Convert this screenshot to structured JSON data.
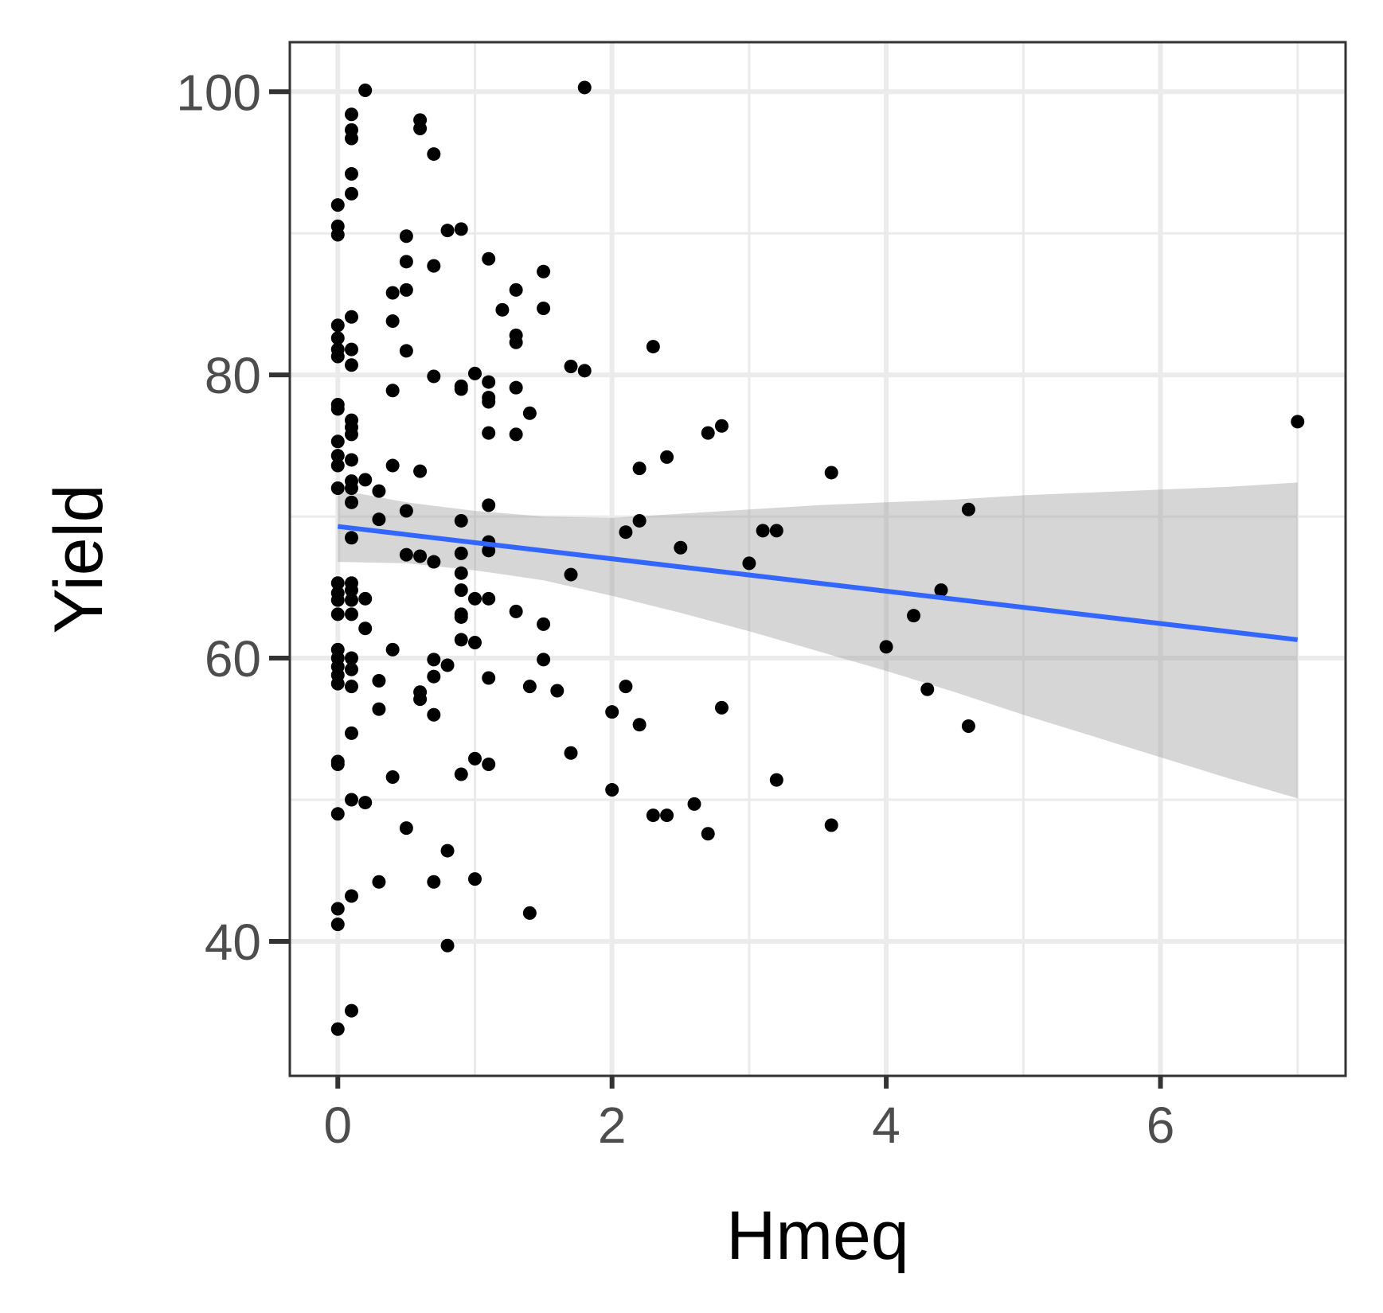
{
  "chart_data": {
    "type": "scatter",
    "xlabel": "Hmeq",
    "ylabel": "Yield",
    "xlim": [
      -0.35,
      7.35
    ],
    "ylim": [
      30.5,
      103.5
    ],
    "x_ticks": [
      0,
      2,
      4,
      6
    ],
    "x_tick_labels": [
      "0",
      "2",
      "4",
      "6"
    ],
    "y_ticks": [
      40,
      60,
      80,
      100
    ],
    "y_tick_labels": [
      "40",
      "60",
      "80",
      "100"
    ],
    "grid": true,
    "point_color": "#000000",
    "points": [
      [
        0,
        33.8
      ],
      [
        0,
        41.2
      ],
      [
        0,
        42.3
      ],
      [
        0,
        49.0
      ],
      [
        0,
        52.5
      ],
      [
        0,
        52.7
      ],
      [
        0,
        58.2
      ],
      [
        0,
        58.8
      ],
      [
        0,
        59.4
      ],
      [
        0,
        60.0
      ],
      [
        0,
        60.6
      ],
      [
        0,
        63.1
      ],
      [
        0,
        64.1
      ],
      [
        0,
        64.6
      ],
      [
        0,
        65.3
      ],
      [
        0,
        72.0
      ],
      [
        0,
        73.6
      ],
      [
        0,
        74.3
      ],
      [
        0,
        75.3
      ],
      [
        0,
        77.6
      ],
      [
        0,
        77.9
      ],
      [
        0,
        81.3
      ],
      [
        0,
        81.8
      ],
      [
        0,
        82.6
      ],
      [
        0,
        83.5
      ],
      [
        0,
        89.9
      ],
      [
        0,
        90.5
      ],
      [
        0,
        92.0
      ],
      [
        0.1,
        35.1
      ],
      [
        0.1,
        43.2
      ],
      [
        0.1,
        50.0
      ],
      [
        0.1,
        54.7
      ],
      [
        0.1,
        58.0
      ],
      [
        0.1,
        59.2
      ],
      [
        0.1,
        60.0
      ],
      [
        0.1,
        63.1
      ],
      [
        0.1,
        64.1
      ],
      [
        0.1,
        64.8
      ],
      [
        0.1,
        65.3
      ],
      [
        0.1,
        68.5
      ],
      [
        0.1,
        71.0
      ],
      [
        0.1,
        72.0
      ],
      [
        0.1,
        72.5
      ],
      [
        0.1,
        74.0
      ],
      [
        0.1,
        75.8
      ],
      [
        0.1,
        76.3
      ],
      [
        0.1,
        76.8
      ],
      [
        0.1,
        80.7
      ],
      [
        0.1,
        81.8
      ],
      [
        0.1,
        84.1
      ],
      [
        0.1,
        92.8
      ],
      [
        0.1,
        94.2
      ],
      [
        0.1,
        96.7
      ],
      [
        0.1,
        97.3
      ],
      [
        0.1,
        98.4
      ],
      [
        0.2,
        49.8
      ],
      [
        0.2,
        62.1
      ],
      [
        0.2,
        64.2
      ],
      [
        0.2,
        72.6
      ],
      [
        0.2,
        100.1
      ],
      [
        0.3,
        44.2
      ],
      [
        0.3,
        56.4
      ],
      [
        0.3,
        58.4
      ],
      [
        0.3,
        69.8
      ],
      [
        0.3,
        71.8
      ],
      [
        0.4,
        51.6
      ],
      [
        0.4,
        60.6
      ],
      [
        0.4,
        73.6
      ],
      [
        0.4,
        78.9
      ],
      [
        0.4,
        83.8
      ],
      [
        0.4,
        85.8
      ],
      [
        0.5,
        48.0
      ],
      [
        0.5,
        67.3
      ],
      [
        0.5,
        70.4
      ],
      [
        0.5,
        81.7
      ],
      [
        0.5,
        86.0
      ],
      [
        0.5,
        88.0
      ],
      [
        0.5,
        89.8
      ],
      [
        0.6,
        57.1
      ],
      [
        0.6,
        57.6
      ],
      [
        0.6,
        67.2
      ],
      [
        0.6,
        73.2
      ],
      [
        0.6,
        97.4
      ],
      [
        0.6,
        98.0
      ],
      [
        0.7,
        44.2
      ],
      [
        0.7,
        56.0
      ],
      [
        0.7,
        58.7
      ],
      [
        0.7,
        59.9
      ],
      [
        0.7,
        66.8
      ],
      [
        0.7,
        79.9
      ],
      [
        0.7,
        87.7
      ],
      [
        0.7,
        95.6
      ],
      [
        0.8,
        39.7
      ],
      [
        0.8,
        46.4
      ],
      [
        0.8,
        59.5
      ],
      [
        0.8,
        90.2
      ],
      [
        0.9,
        51.8
      ],
      [
        0.9,
        61.3
      ],
      [
        0.9,
        62.9
      ],
      [
        0.9,
        63.1
      ],
      [
        0.9,
        64.8
      ],
      [
        0.9,
        66.0
      ],
      [
        0.9,
        67.4
      ],
      [
        0.9,
        69.7
      ],
      [
        0.9,
        79.0
      ],
      [
        0.9,
        79.2
      ],
      [
        0.9,
        90.3
      ],
      [
        1.0,
        44.4
      ],
      [
        1.0,
        52.9
      ],
      [
        1.0,
        61.1
      ],
      [
        1.0,
        64.2
      ],
      [
        1.0,
        80.1
      ],
      [
        1.1,
        52.5
      ],
      [
        1.1,
        58.6
      ],
      [
        1.1,
        64.2
      ],
      [
        1.1,
        67.6
      ],
      [
        1.1,
        68.2
      ],
      [
        1.1,
        70.8
      ],
      [
        1.1,
        75.9
      ],
      [
        1.1,
        78.1
      ],
      [
        1.1,
        78.4
      ],
      [
        1.1,
        79.5
      ],
      [
        1.1,
        88.2
      ],
      [
        1.2,
        84.6
      ],
      [
        1.3,
        63.3
      ],
      [
        1.3,
        75.8
      ],
      [
        1.3,
        79.1
      ],
      [
        1.3,
        82.3
      ],
      [
        1.3,
        82.8
      ],
      [
        1.3,
        86.0
      ],
      [
        1.4,
        42.0
      ],
      [
        1.4,
        58.0
      ],
      [
        1.4,
        77.3
      ],
      [
        1.5,
        59.9
      ],
      [
        1.5,
        62.4
      ],
      [
        1.5,
        84.7
      ],
      [
        1.5,
        87.3
      ],
      [
        1.6,
        57.7
      ],
      [
        1.7,
        53.3
      ],
      [
        1.7,
        65.9
      ],
      [
        1.7,
        80.6
      ],
      [
        1.8,
        80.3
      ],
      [
        1.8,
        100.3
      ],
      [
        2.0,
        50.7
      ],
      [
        2.0,
        56.2
      ],
      [
        2.1,
        58.0
      ],
      [
        2.1,
        68.9
      ],
      [
        2.2,
        55.3
      ],
      [
        2.2,
        69.7
      ],
      [
        2.2,
        73.4
      ],
      [
        2.3,
        48.9
      ],
      [
        2.3,
        82.0
      ],
      [
        2.4,
        48.9
      ],
      [
        2.4,
        74.2
      ],
      [
        2.5,
        67.8
      ],
      [
        2.6,
        49.7
      ],
      [
        2.7,
        47.6
      ],
      [
        2.7,
        75.9
      ],
      [
        2.8,
        56.5
      ],
      [
        2.8,
        76.4
      ],
      [
        3.0,
        66.7
      ],
      [
        3.1,
        69.0
      ],
      [
        3.2,
        51.4
      ],
      [
        3.2,
        69.0
      ],
      [
        3.6,
        48.2
      ],
      [
        3.6,
        73.1
      ],
      [
        4.0,
        60.8
      ],
      [
        4.2,
        63.0
      ],
      [
        4.3,
        57.8
      ],
      [
        4.4,
        64.8
      ],
      [
        4.6,
        55.2
      ],
      [
        4.6,
        70.5
      ],
      [
        7.0,
        76.7
      ]
    ],
    "trend_line": {
      "x": [
        0,
        7.0
      ],
      "y": [
        69.3,
        61.3
      ],
      "color": "#3366ff"
    },
    "confidence_band": {
      "x": [
        0,
        0.5,
        1.0,
        1.5,
        2.0,
        2.5,
        3.0,
        3.5,
        4.0,
        4.5,
        5.0,
        5.5,
        6.0,
        6.5,
        7.0
      ],
      "upper": [
        71.9,
        71.0,
        70.4,
        70.0,
        69.9,
        70.2,
        70.5,
        70.8,
        71.0,
        71.2,
        71.5,
        71.7,
        71.9,
        72.1,
        72.4
      ],
      "lower": [
        66.8,
        66.7,
        66.2,
        65.5,
        64.4,
        63.2,
        61.9,
        60.5,
        59.1,
        57.6,
        56.0,
        54.5,
        53.0,
        51.5,
        50.1
      ],
      "color": "#999999",
      "opacity": 0.4
    },
    "colors": {
      "panel_border": "#333333",
      "grid": "#ebebeb",
      "tick_label": "#4d4d4d"
    }
  }
}
